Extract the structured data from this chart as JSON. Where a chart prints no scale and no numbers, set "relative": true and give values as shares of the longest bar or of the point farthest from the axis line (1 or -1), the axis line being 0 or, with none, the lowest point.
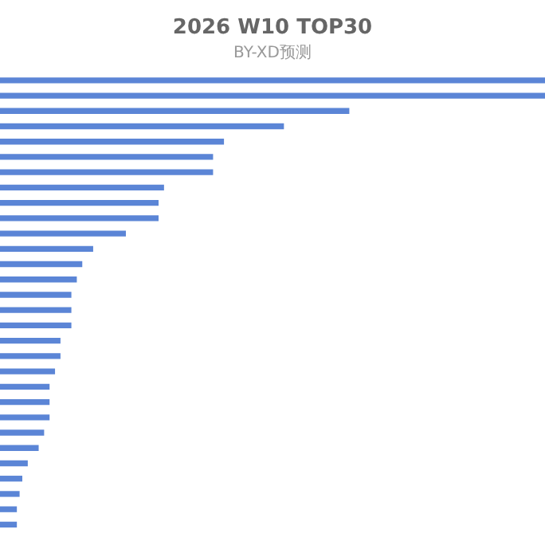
{
  "chart_data": {
    "type": "bar",
    "orientation": "horizontal",
    "relative": true,
    "title": "2026 W10 TOP30",
    "subtitle": "BY-XD预测",
    "categories": [
      null,
      null,
      null,
      null,
      null,
      null,
      null,
      null,
      null,
      null,
      null,
      null,
      null,
      null,
      null,
      null,
      null,
      null,
      null,
      null,
      null,
      null,
      null,
      null,
      null,
      null,
      null,
      null,
      null,
      null
    ],
    "values": [
      1,
      1,
      0.64,
      0.52,
      0.41,
      0.39,
      0.39,
      0.3,
      0.29,
      0.29,
      0.23,
      0.17,
      0.15,
      0.14,
      0.13,
      0.13,
      0.13,
      0.11,
      0.11,
      0.1,
      0.09,
      0.09,
      0.09,
      0.08,
      0.07,
      0.05,
      0.04,
      0.035,
      0.03,
      0.03
    ],
    "color": "#5b85d6",
    "legend": false
  }
}
